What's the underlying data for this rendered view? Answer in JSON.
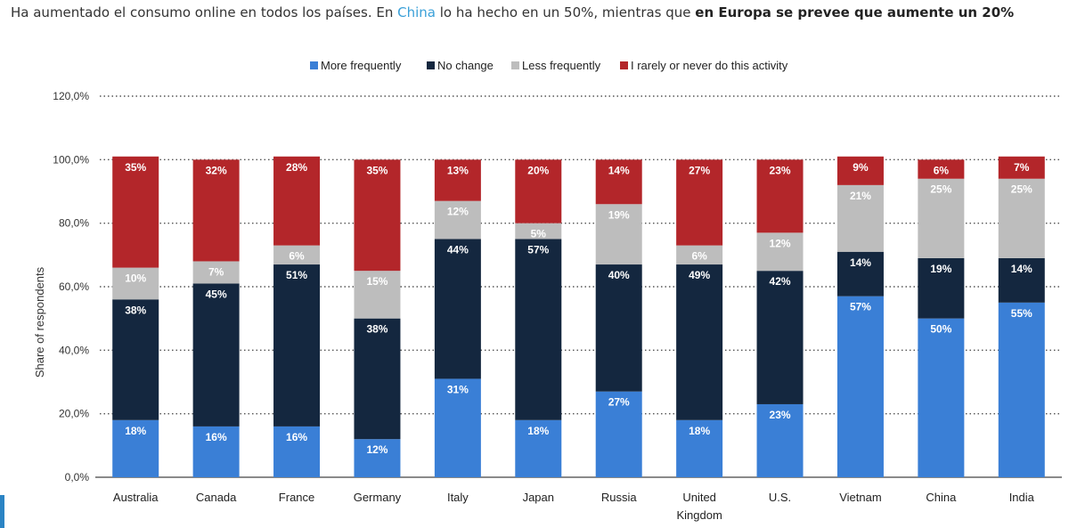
{
  "headline": {
    "part1": "Ha aumentado el consumo online en todos los países. En ",
    "link": "China",
    "part2": " lo ha hecho en un 50%, mientras que ",
    "bold": "en Europa se prevee que aumente un 20%"
  },
  "chart_data": {
    "type": "bar",
    "stacked": true,
    "categories": [
      "Australia",
      "Canada",
      "France",
      "Germany",
      "Italy",
      "Japan",
      "Russia",
      [
        "United",
        "Kingdom"
      ],
      "U.S.",
      "Vietnam",
      "China",
      "India"
    ],
    "series": [
      {
        "name": "More frequently",
        "color": "#3a7fd6",
        "values": [
          18,
          16,
          16,
          12,
          31,
          18,
          27,
          18,
          23,
          57,
          50,
          55
        ]
      },
      {
        "name": "No change",
        "color": "#14273f",
        "values": [
          38,
          45,
          51,
          38,
          44,
          57,
          40,
          49,
          42,
          14,
          19,
          14
        ]
      },
      {
        "name": "Less frequently",
        "color": "#bdbdbd",
        "values": [
          10,
          7,
          6,
          15,
          12,
          5,
          19,
          6,
          12,
          21,
          25,
          25
        ]
      },
      {
        "name": "I rarely or never do this activity",
        "color": "#b3262a",
        "values": [
          35,
          32,
          28,
          35,
          13,
          20,
          14,
          27,
          23,
          9,
          6,
          7
        ]
      }
    ],
    "yticks": [
      "0,0%",
      "20,0%",
      "40,0%",
      "60,0%",
      "80,0%",
      "100,0%",
      "120,0%"
    ],
    "ylabel": "Share of respondents",
    "ylim": [
      0,
      120
    ],
    "grid": true,
    "legend": "top-center"
  }
}
